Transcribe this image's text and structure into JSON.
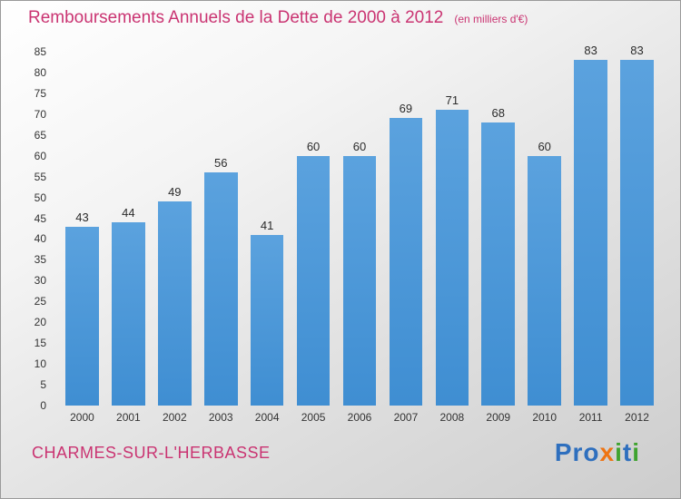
{
  "header": {
    "title": "Remboursements Annuels de la Dette de 2000 à 2012",
    "subtitle": "(en milliers d'€)"
  },
  "colors": {
    "title": "#ca3472",
    "axis_text": "#333333",
    "bar": "#3f8ed2",
    "bar_light": "#5ba2de"
  },
  "chart_data": {
    "type": "bar",
    "title": "Remboursements Annuels de la Dette de 2000 à 2012",
    "subtitle": "(en milliers d'€)",
    "categories": [
      "2000",
      "2001",
      "2002",
      "2003",
      "2004",
      "2005",
      "2006",
      "2007",
      "2008",
      "2009",
      "2010",
      "2011",
      "2012"
    ],
    "values": [
      43,
      44,
      49,
      56,
      41,
      60,
      60,
      69,
      71,
      68,
      60,
      83,
      83
    ],
    "xlabel": "",
    "ylabel": "",
    "ylim": [
      0,
      85
    ],
    "ytick_step": 5,
    "grid": false,
    "legend": "none",
    "value_labels": true
  },
  "footer": {
    "commune": "CHARMES-SUR-L'HERBASSE",
    "logo": {
      "text": "Proxiti",
      "letters": [
        {
          "ch": "P",
          "color": "#2e6fbe"
        },
        {
          "ch": "r",
          "color": "#2e6fbe"
        },
        {
          "ch": "o",
          "color": "#2e6fbe"
        },
        {
          "ch": "x",
          "color": "#ee7413"
        },
        {
          "ch": "i",
          "color": "#3fa32f"
        },
        {
          "ch": "t",
          "color": "#2e6fbe"
        },
        {
          "ch": "i",
          "color": "#3fa32f"
        }
      ]
    }
  }
}
